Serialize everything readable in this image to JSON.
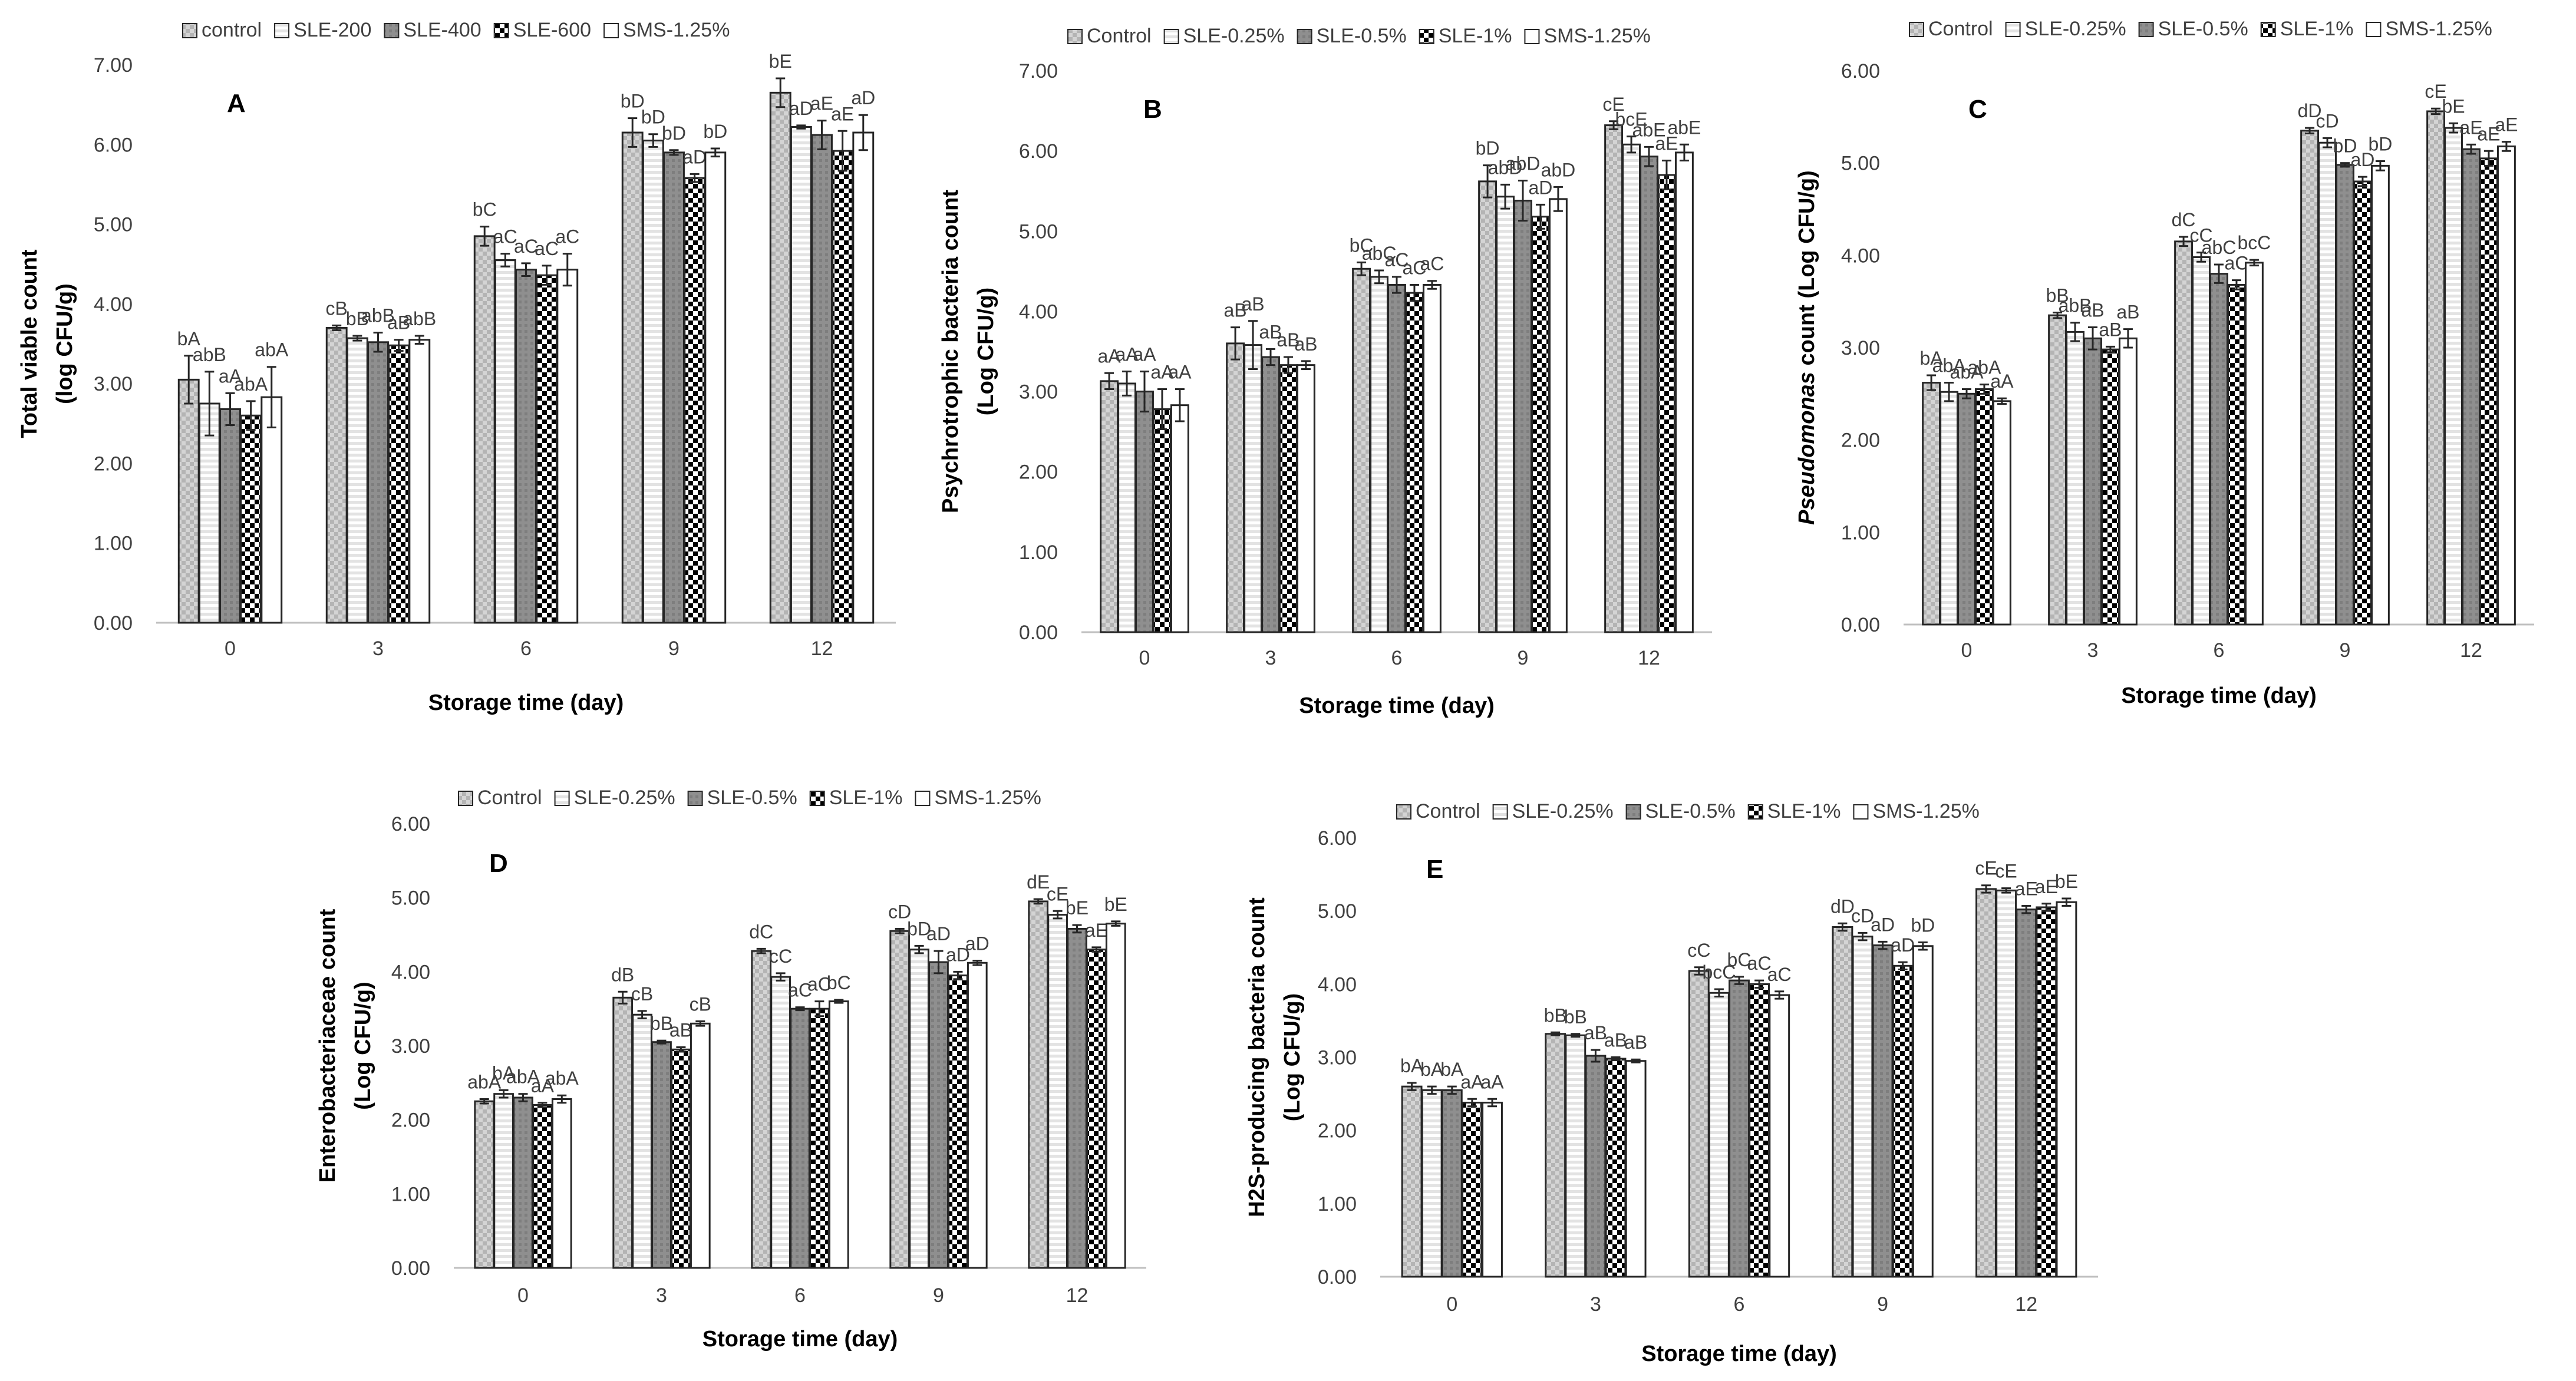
{
  "chart_data": [
    {
      "type": "bar",
      "panel_label": "A",
      "title": "",
      "xlabel": "Storage time (day)",
      "ylabel": [
        "Total viable count",
        "(log CFU/g)"
      ],
      "ylabel_italic_prefix": "",
      "ylim": [
        0,
        7
      ],
      "yticks": [
        "0.00",
        "1.00",
        "2.00",
        "3.00",
        "4.00",
        "5.00",
        "6.00",
        "7.00"
      ],
      "categories": [
        "0",
        "3",
        "6",
        "9",
        "12"
      ],
      "series": [
        {
          "name": "control",
          "pattern": "control",
          "values": [
            3.05,
            3.7,
            4.85,
            6.15,
            6.65
          ],
          "errors": [
            0.3,
            0.03,
            0.12,
            0.18,
            0.18
          ],
          "labels": [
            "bA",
            "cB",
            "bC",
            "bD",
            "bE"
          ]
        },
        {
          "name": "SLE-200",
          "pattern": "sle-low",
          "values": [
            2.75,
            3.57,
            4.55,
            6.05,
            6.22
          ],
          "errors": [
            0.4,
            0.03,
            0.08,
            0.08,
            0.02
          ],
          "labels": [
            "abB",
            "bB",
            "aC",
            "bD",
            "aD"
          ]
        },
        {
          "name": "SLE-400",
          "pattern": "sle-mid",
          "values": [
            2.68,
            3.52,
            4.43,
            5.9,
            6.12
          ],
          "errors": [
            0.2,
            0.12,
            0.08,
            0.03,
            0.18
          ],
          "labels": [
            "aA",
            "abB",
            "aC",
            "bD",
            "aE"
          ]
        },
        {
          "name": "SLE-600",
          "pattern": "sle-high",
          "values": [
            2.6,
            3.48,
            4.36,
            5.58,
            5.92
          ],
          "errors": [
            0.18,
            0.07,
            0.12,
            0.05,
            0.25
          ],
          "labels": [
            "abA",
            "aB",
            "aC",
            "aD",
            "aE"
          ]
        },
        {
          "name": "SMS-1.25%",
          "pattern": "sms",
          "values": [
            2.83,
            3.55,
            4.43,
            5.9,
            6.15
          ],
          "errors": [
            0.38,
            0.05,
            0.2,
            0.05,
            0.22
          ],
          "labels": [
            "abA",
            "abB",
            "aC",
            "bD",
            "aD"
          ]
        }
      ]
    },
    {
      "type": "bar",
      "panel_label": "B",
      "title": "",
      "xlabel": "Storage time (day)",
      "ylabel": [
        "Psychrotrophic bacteria count",
        "(Log CFU/g)"
      ],
      "ylabel_italic_prefix": "",
      "ylim": [
        0,
        7
      ],
      "yticks": [
        "0.00",
        "1.00",
        "2.00",
        "3.00",
        "4.00",
        "5.00",
        "6.00",
        "7.00"
      ],
      "categories": [
        "0",
        "3",
        "6",
        "9",
        "12"
      ],
      "series": [
        {
          "name": "Control",
          "pattern": "control",
          "values": [
            3.13,
            3.6,
            4.53,
            5.62,
            6.32
          ],
          "errors": [
            0.1,
            0.2,
            0.08,
            0.2,
            0.05
          ],
          "labels": [
            "aA",
            "aB",
            "bC",
            "bD",
            "cE"
          ]
        },
        {
          "name": "SLE-0.25%",
          "pattern": "sle-low",
          "values": [
            3.1,
            3.58,
            4.43,
            5.43,
            6.08
          ],
          "errors": [
            0.15,
            0.3,
            0.08,
            0.15,
            0.1
          ],
          "labels": [
            "aA",
            "aB",
            "abC",
            "abD",
            "bcE"
          ]
        },
        {
          "name": "SLE-0.5%",
          "pattern": "sle-mid",
          "values": [
            3.0,
            3.43,
            4.33,
            5.38,
            5.93
          ],
          "errors": [
            0.25,
            0.1,
            0.1,
            0.25,
            0.12
          ],
          "labels": [
            "aA",
            "aB",
            "aC",
            "abD",
            "abE"
          ]
        },
        {
          "name": "SLE-1%",
          "pattern": "sle-high",
          "values": [
            2.78,
            3.33,
            4.23,
            5.18,
            5.7
          ],
          "errors": [
            0.25,
            0.1,
            0.1,
            0.15,
            0.18
          ],
          "labels": [
            "aA",
            "aB",
            "aC",
            "aD",
            "aE"
          ]
        },
        {
          "name": "SMS-1.25%",
          "pattern": "sms",
          "values": [
            2.83,
            3.33,
            4.33,
            5.4,
            5.98
          ],
          "errors": [
            0.2,
            0.05,
            0.05,
            0.15,
            0.1
          ],
          "labels": [
            "aA",
            "aB",
            "aC",
            "abD",
            "abE"
          ]
        }
      ]
    },
    {
      "type": "bar",
      "panel_label": "C",
      "title": "",
      "xlabel": "Storage time (day)",
      "ylabel": [
        "count (Log CFU/g)"
      ],
      "ylabel_italic_prefix": "Pseudomonas",
      "ylim": [
        0,
        6
      ],
      "yticks": [
        "0.00",
        "1.00",
        "2.00",
        "3.00",
        "4.00",
        "5.00",
        "6.00"
      ],
      "categories": [
        "0",
        "3",
        "6",
        "9",
        "12"
      ],
      "series": [
        {
          "name": "Control",
          "pattern": "control",
          "values": [
            2.62,
            3.35,
            4.15,
            5.35,
            5.56
          ],
          "errors": [
            0.08,
            0.03,
            0.05,
            0.03,
            0.03
          ],
          "labels": [
            "bA",
            "bB",
            "dC",
            "dD",
            "cE"
          ]
        },
        {
          "name": "SLE-0.25%",
          "pattern": "sle-low",
          "values": [
            2.52,
            3.17,
            3.98,
            5.22,
            5.38
          ],
          "errors": [
            0.1,
            0.1,
            0.05,
            0.05,
            0.05
          ],
          "labels": [
            "abA",
            "abB",
            "cC",
            "cD",
            "bE"
          ]
        },
        {
          "name": "SLE-0.5%",
          "pattern": "sle-mid",
          "values": [
            2.5,
            3.1,
            3.8,
            4.98,
            5.15
          ],
          "errors": [
            0.05,
            0.12,
            0.1,
            0.02,
            0.05
          ],
          "labels": [
            "abA",
            "aB",
            "abC",
            "bD",
            "aE"
          ]
        },
        {
          "name": "SLE-1%",
          "pattern": "sle-high",
          "values": [
            2.55,
            2.98,
            3.68,
            4.8,
            5.05
          ],
          "errors": [
            0.05,
            0.03,
            0.05,
            0.05,
            0.08
          ],
          "labels": [
            "abA",
            "aB",
            "aC",
            "aD",
            "aE"
          ]
        },
        {
          "name": "SMS-1.25%",
          "pattern": "sms",
          "values": [
            2.42,
            3.1,
            3.92,
            4.97,
            5.18
          ],
          "errors": [
            0.03,
            0.1,
            0.03,
            0.05,
            0.05
          ],
          "labels": [
            "aA",
            "aB",
            "bcC",
            "bD",
            "aE"
          ]
        }
      ]
    },
    {
      "type": "bar",
      "panel_label": "D",
      "title": "",
      "xlabel": "Storage time (day)",
      "ylabel": [
        "Enterobacteriaceae count",
        "(Log CFU/g)"
      ],
      "ylabel_italic_prefix": "",
      "ylim": [
        0,
        6
      ],
      "yticks": [
        "0.00",
        "1.00",
        "2.00",
        "3.00",
        "4.00",
        "5.00",
        "6.00"
      ],
      "categories": [
        "0",
        "3",
        "6",
        "9",
        "12"
      ],
      "series": [
        {
          "name": "Control",
          "pattern": "control",
          "values": [
            2.25,
            3.65,
            4.28,
            4.55,
            4.95
          ],
          "errors": [
            0.03,
            0.08,
            0.03,
            0.03,
            0.03
          ],
          "labels": [
            "abA",
            "dB",
            "dC",
            "cD",
            "dE"
          ]
        },
        {
          "name": "SLE-0.25%",
          "pattern": "sle-low",
          "values": [
            2.35,
            3.42,
            3.93,
            4.3,
            4.77
          ],
          "errors": [
            0.05,
            0.05,
            0.05,
            0.05,
            0.05
          ],
          "labels": [
            "bA",
            "cB",
            "cC",
            "bD",
            "cE"
          ]
        },
        {
          "name": "SLE-0.5%",
          "pattern": "sle-mid",
          "values": [
            2.3,
            3.05,
            3.5,
            4.13,
            4.58
          ],
          "errors": [
            0.05,
            0.02,
            0.02,
            0.15,
            0.05
          ],
          "labels": [
            "abA",
            "bB",
            "aC",
            "aD",
            "bE"
          ]
        },
        {
          "name": "SLE-1%",
          "pattern": "sle-high",
          "values": [
            2.2,
            2.95,
            3.5,
            3.95,
            4.3
          ],
          "errors": [
            0.03,
            0.03,
            0.1,
            0.05,
            0.03
          ],
          "labels": [
            "aA",
            "aB",
            "aC",
            "aD",
            "aE"
          ]
        },
        {
          "name": "SMS-1.25%",
          "pattern": "sms",
          "values": [
            2.28,
            3.3,
            3.6,
            4.12,
            4.65
          ],
          "errors": [
            0.05,
            0.03,
            0.02,
            0.03,
            0.03
          ],
          "labels": [
            "abA",
            "cB",
            "bC",
            "aD",
            "bE"
          ]
        }
      ]
    },
    {
      "type": "bar",
      "panel_label": "E",
      "title": "",
      "xlabel": "Storage time (day)",
      "ylabel": [
        "H2S-producing bacteria count",
        "(Log CFU/g)"
      ],
      "ylabel_italic_prefix": "",
      "ylim": [
        0,
        6
      ],
      "yticks": [
        "0.00",
        "1.00",
        "2.00",
        "3.00",
        "4.00",
        "5.00",
        "6.00"
      ],
      "categories": [
        "0",
        "3",
        "6",
        "9",
        "12"
      ],
      "series": [
        {
          "name": "Control",
          "pattern": "control",
          "values": [
            2.6,
            3.32,
            4.18,
            4.78,
            5.3
          ],
          "errors": [
            0.05,
            0.02,
            0.05,
            0.05,
            0.05
          ],
          "labels": [
            "bA",
            "bB",
            "cC",
            "dD",
            "cE"
          ]
        },
        {
          "name": "SLE-0.25%",
          "pattern": "sle-low",
          "values": [
            2.55,
            3.3,
            3.88,
            4.65,
            5.28
          ],
          "errors": [
            0.05,
            0.02,
            0.05,
            0.05,
            0.03
          ],
          "labels": [
            "bA",
            "bB",
            "bcC",
            "cD",
            "cE"
          ]
        },
        {
          "name": "SLE-0.5%",
          "pattern": "sle-mid",
          "values": [
            2.55,
            3.02,
            4.05,
            4.53,
            5.02
          ],
          "errors": [
            0.05,
            0.08,
            0.05,
            0.05,
            0.05
          ],
          "labels": [
            "bA",
            "aB",
            "bC",
            "aD",
            "aE"
          ]
        },
        {
          "name": "SLE-1%",
          "pattern": "sle-high",
          "values": [
            2.38,
            2.98,
            4.0,
            4.25,
            5.05
          ],
          "errors": [
            0.05,
            0.02,
            0.05,
            0.05,
            0.05
          ],
          "labels": [
            "aA",
            "aB",
            "aC",
            "aD",
            "aE"
          ]
        },
        {
          "name": "SMS-1.25%",
          "pattern": "sms",
          "values": [
            2.38,
            2.95,
            3.85,
            4.52,
            5.12
          ],
          "errors": [
            0.05,
            0.02,
            0.05,
            0.05,
            0.05
          ],
          "labels": [
            "aA",
            "aB",
            "aC",
            "bD",
            "bE"
          ]
        }
      ]
    }
  ],
  "colors": {
    "axis": "#bfbfbf",
    "text": "#404040",
    "bar_edge": "#262626",
    "control": "#c8c8c8",
    "sle-mid": "#8c8c8c",
    "sle-high": "#000000",
    "white": "#ffffff"
  }
}
